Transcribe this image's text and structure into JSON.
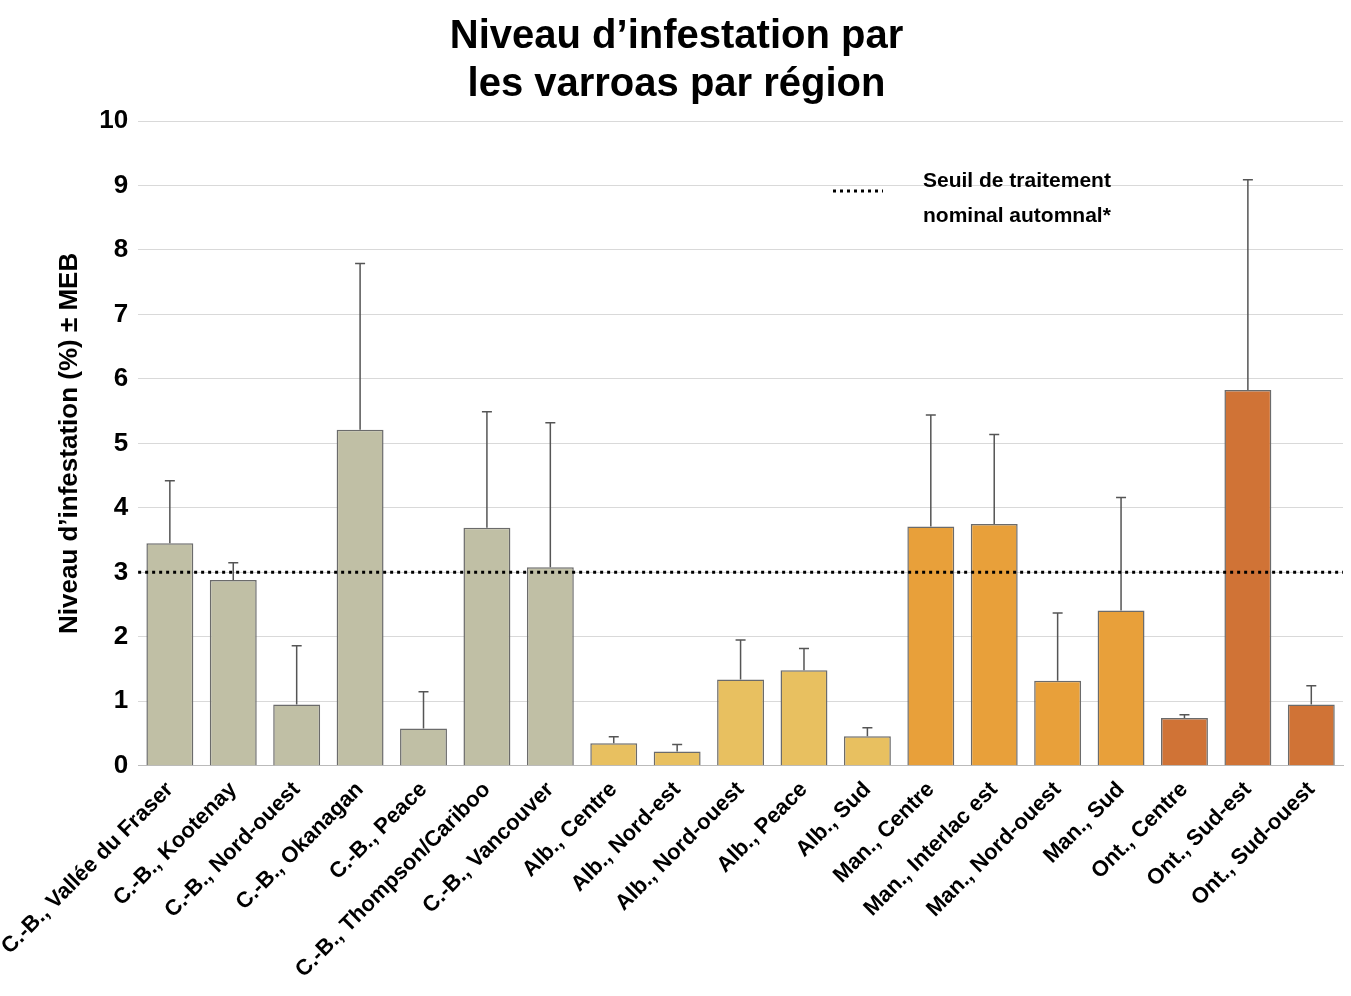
{
  "chart_data": {
    "type": "bar",
    "title": "Niveau d’infestation par\nles varroas par région",
    "ylabel": "Niveau d’infestation (%) ± MEB",
    "categories": [
      "C.-B., Vallée du Fraser",
      "C.-B., Kootenay",
      "C.-B., Nord-ouest",
      "C.-B., Okanagan",
      "C.-B., Peace",
      "C.-B., Thompson/Cariboo",
      "C.-B., Vancouver",
      "Alb., Centre",
      "Alb., Nord-est",
      "Alb., Nord-ouest",
      "Alb., Peace",
      "Alb., Sud",
      "Man., Centre",
      "Man., Interlac est",
      "Man., Nord-ouest",
      "Man., Sud",
      "Ont., Centre",
      "Ont., Sud-est",
      "Ont., Sud-ouest"
    ],
    "values": [
      3.45,
      2.88,
      0.95,
      5.21,
      0.58,
      3.69,
      3.08,
      0.35,
      0.22,
      1.34,
      1.48,
      0.46,
      3.71,
      3.75,
      1.32,
      2.41,
      0.74,
      5.83,
      0.95
    ],
    "errors": [
      [
        3.45,
        4.42
      ],
      [
        2.88,
        3.15
      ],
      [
        0.95,
        1.86
      ],
      [
        5.21,
        7.79
      ],
      [
        0.58,
        1.15
      ],
      [
        3.69,
        5.49
      ],
      [
        3.08,
        5.32
      ],
      [
        0.35,
        0.45
      ],
      [
        0.22,
        0.33
      ],
      [
        1.34,
        1.95
      ],
      [
        1.48,
        1.82
      ],
      [
        0.46,
        0.59
      ],
      [
        3.71,
        5.44
      ],
      [
        3.75,
        5.14
      ],
      [
        1.32,
        2.37
      ],
      [
        2.41,
        4.16
      ],
      [
        0.74,
        0.79
      ],
      [
        5.83,
        9.09
      ],
      [
        0.95,
        1.24
      ]
    ],
    "colors": [
      "#c0bfa5",
      "#c0bfa5",
      "#c0bfa5",
      "#c0bfa5",
      "#c0bfa5",
      "#c0bfa5",
      "#c0bfa5",
      "#e8c060",
      "#e8c060",
      "#e8c060",
      "#e8c060",
      "#e8c060",
      "#e8a03a",
      "#e8a03a",
      "#e8a03a",
      "#e8a03a",
      "#d07336",
      "#d07336",
      "#d07336"
    ],
    "ylim": [
      0,
      10
    ],
    "yticks": [
      0,
      1,
      2,
      3,
      4,
      5,
      6,
      7,
      8,
      9,
      10
    ],
    "grid": "y",
    "ref_lines": [
      {
        "axis": "y",
        "value": 3,
        "label": "Seuil de traitement nominal automnal*",
        "color": "#000000",
        "line_style": "dotted"
      }
    ],
    "legend": "top right"
  }
}
